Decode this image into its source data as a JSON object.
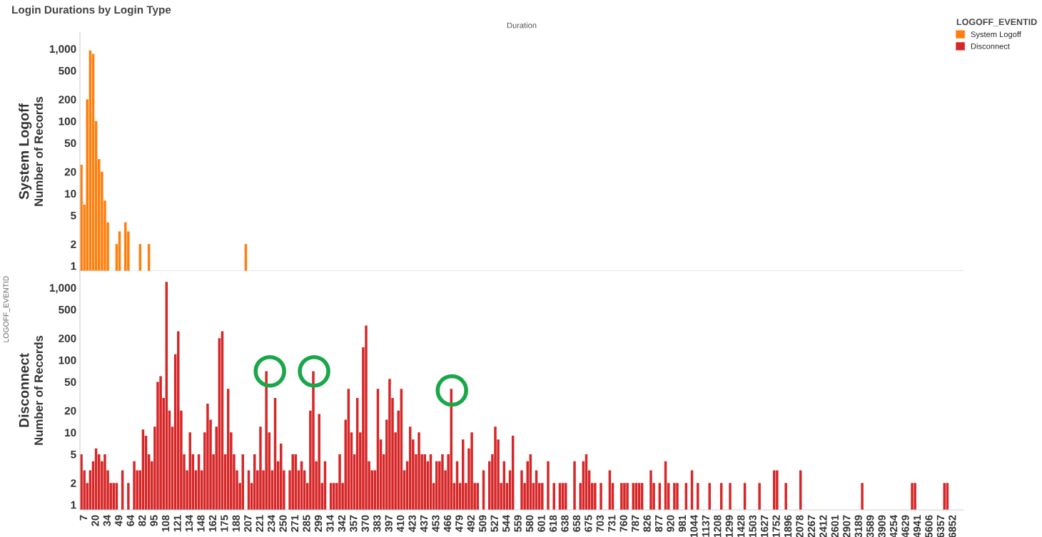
{
  "chart_data": [
    {
      "type": "bar",
      "title": "Login Durations by Login Type",
      "xlabel": "Duration",
      "ylabel": "Number of Records",
      "annotations": [
        "System Logoff"
      ],
      "legend": "right",
      "legend_title": "LOGOFF_EVENTID",
      "log": true,
      "grid": false,
      "tick_labels": "y",
      "ylim": [
        0.85,
        1700
      ],
      "yticks": [
        1,
        2,
        5,
        10,
        20,
        50,
        100,
        200,
        500,
        {
          "value": 1000,
          "label": "1,000"
        }
      ],
      "categories": [
        null,
        "7",
        null,
        null,
        null,
        "20",
        null,
        null,
        null,
        "34",
        null,
        null,
        null,
        "49",
        null,
        null,
        null,
        "64",
        null,
        null,
        null,
        "82",
        null,
        null,
        null,
        "95",
        null,
        null,
        null,
        "108",
        null,
        null,
        null,
        "121",
        null,
        null,
        null,
        "134",
        null,
        null,
        null,
        "148",
        null,
        null,
        null,
        "162",
        null,
        null,
        null,
        "175",
        null,
        null,
        null,
        "188",
        null,
        null,
        null,
        "207",
        null,
        null,
        null,
        "221",
        null,
        null,
        null,
        "234",
        null,
        null,
        null,
        "250",
        null,
        null,
        null,
        "271",
        null,
        null,
        null,
        "285",
        null,
        null,
        null,
        "299",
        null,
        null,
        null,
        "314",
        null,
        null,
        null,
        "342",
        null,
        null,
        null,
        "357",
        null,
        null,
        null,
        "370",
        null,
        null,
        null,
        "383",
        null,
        null,
        null,
        "397",
        null,
        null,
        null,
        "410",
        null,
        null,
        null,
        "423",
        null,
        null,
        null,
        "437",
        null,
        null,
        null,
        "453",
        null,
        null,
        null,
        "466",
        null,
        null,
        null,
        "479",
        null,
        null,
        null,
        "492",
        null,
        null,
        null,
        "509",
        null,
        null,
        null,
        "527",
        null,
        null,
        null,
        "544",
        null,
        null,
        null,
        "559",
        null,
        null,
        null,
        "580",
        null,
        null,
        null,
        "601",
        null,
        null,
        null,
        "618",
        null,
        null,
        null,
        "638",
        null,
        null,
        null,
        "658",
        null,
        null,
        null,
        "675",
        null,
        null,
        null,
        "703",
        null,
        null,
        null,
        "731",
        null,
        null,
        null,
        "760",
        null,
        null,
        null,
        "787",
        null,
        null,
        null,
        "826",
        null,
        null,
        null,
        "877",
        null,
        null,
        null,
        "920",
        null,
        null,
        null,
        "981",
        null,
        null,
        null,
        "1044",
        null,
        null,
        null,
        "1137",
        null,
        null,
        null,
        "1208",
        null,
        null,
        null,
        "1299",
        null,
        null,
        null,
        "1428",
        null,
        null,
        null,
        "1503",
        null,
        null,
        null,
        "1627",
        null,
        null,
        null,
        "1752",
        null,
        null,
        null,
        "1896",
        null,
        null,
        null,
        "2078",
        null,
        null,
        null,
        "2267",
        null,
        null,
        null,
        "2412",
        null,
        null,
        null,
        "2601",
        null,
        null,
        null,
        "2907",
        null,
        null,
        null,
        "3189",
        null,
        null,
        null,
        "3589",
        null,
        null,
        null,
        "3909",
        null,
        null,
        null,
        "4254",
        null,
        null,
        null,
        "4629",
        null,
        null,
        null,
        "4941",
        null,
        null,
        null,
        "5606",
        null,
        null,
        null,
        "6357",
        null,
        null,
        null,
        "6852",
        null,
        null,
        null
      ],
      "series": [
        {
          "name": "System Logoff",
          "color": "#ff7f0e",
          "values": [
            25,
            7,
            200,
            950,
            850,
            100,
            30,
            20,
            8,
            4,
            null,
            null,
            2,
            3,
            null,
            4,
            3,
            null,
            null,
            null,
            2,
            null,
            null,
            2,
            null,
            null,
            null,
            null,
            null,
            null,
            null,
            null,
            null,
            null,
            null,
            null,
            null,
            null,
            null,
            null,
            null,
            null,
            null,
            null,
            null,
            null,
            null,
            null,
            null,
            null,
            null,
            null,
            null,
            null,
            null,
            null,
            2,
            null,
            null,
            null,
            null,
            null,
            null,
            null,
            null,
            null,
            null,
            null,
            null,
            null,
            null,
            null,
            null,
            null,
            null,
            null,
            null,
            null,
            null,
            null,
            null,
            null,
            null,
            null,
            null,
            null,
            null,
            null,
            null,
            null,
            null,
            null,
            null,
            null,
            null,
            null,
            null,
            null,
            null,
            null,
            null,
            null,
            null,
            null,
            null,
            null,
            null,
            null,
            null,
            null,
            null,
            null,
            null,
            null,
            null,
            null,
            null,
            null,
            null,
            null,
            null,
            null,
            null,
            null,
            null,
            null,
            null,
            null,
            null,
            null,
            null,
            null,
            null,
            null,
            null,
            null,
            null,
            null,
            null,
            null,
            null,
            null,
            null,
            null,
            null,
            null,
            null,
            null,
            null,
            null,
            null,
            null,
            null,
            null,
            null,
            null,
            null,
            null,
            null,
            null,
            null,
            null,
            null,
            null,
            null,
            null,
            null,
            null,
            null,
            null,
            null,
            null,
            null,
            null,
            null,
            null,
            null,
            null,
            null,
            null,
            null,
            null,
            null,
            null,
            null,
            null,
            null,
            null,
            null,
            null,
            null,
            null,
            null,
            null,
            null,
            null,
            null,
            null,
            null,
            null,
            null,
            null,
            null,
            null,
            null,
            null,
            null,
            null,
            null,
            null,
            null,
            null,
            null,
            null,
            null,
            null,
            null,
            null,
            null,
            null,
            null,
            null,
            null,
            null,
            null,
            null,
            null,
            null,
            null,
            null,
            null,
            null,
            null,
            null,
            null,
            null,
            null,
            null,
            null,
            null,
            null,
            null,
            null,
            null,
            null,
            null,
            null,
            null,
            null,
            null,
            null,
            null,
            null,
            null,
            null,
            null,
            null,
            null,
            null,
            null,
            null,
            null,
            null,
            null,
            null,
            null,
            null,
            null,
            null,
            null,
            null,
            null,
            null,
            null,
            null,
            null,
            null,
            null,
            null,
            null,
            null,
            null,
            null,
            null,
            null,
            null,
            null,
            null,
            null,
            null,
            null,
            null,
            null,
            null,
            null,
            null,
            null,
            null,
            null,
            null,
            null
          ]
        }
      ]
    },
    {
      "type": "bar",
      "ylabel": "Number of Records",
      "annotations": [
        "Disconnect",
        "LOGOFF_EVENTID"
      ],
      "log": true,
      "grid": false,
      "ylim": [
        0.85,
        1700
      ],
      "yticks": [
        1,
        2,
        5,
        10,
        20,
        50,
        100,
        200,
        500,
        {
          "value": 1000,
          "label": "1,000"
        }
      ],
      "categories": [
        null,
        "7",
        null,
        null,
        null,
        "20",
        null,
        null,
        null,
        "34",
        null,
        null,
        null,
        "49",
        null,
        null,
        null,
        "64",
        null,
        null,
        null,
        "82",
        null,
        null,
        null,
        "95",
        null,
        null,
        null,
        "108",
        null,
        null,
        null,
        "121",
        null,
        null,
        null,
        "134",
        null,
        null,
        null,
        "148",
        null,
        null,
        null,
        "162",
        null,
        null,
        null,
        "175",
        null,
        null,
        null,
        "188",
        null,
        null,
        null,
        "207",
        null,
        null,
        null,
        "221",
        null,
        null,
        null,
        "234",
        null,
        null,
        null,
        "250",
        null,
        null,
        null,
        "271",
        null,
        null,
        null,
        "285",
        null,
        null,
        null,
        "299",
        null,
        null,
        null,
        "314",
        null,
        null,
        null,
        "342",
        null,
        null,
        null,
        "357",
        null,
        null,
        null,
        "370",
        null,
        null,
        null,
        "383",
        null,
        null,
        null,
        "397",
        null,
        null,
        null,
        "410",
        null,
        null,
        null,
        "423",
        null,
        null,
        null,
        "437",
        null,
        null,
        null,
        "453",
        null,
        null,
        null,
        "466",
        null,
        null,
        null,
        "479",
        null,
        null,
        null,
        "492",
        null,
        null,
        null,
        "509",
        null,
        null,
        null,
        "527",
        null,
        null,
        null,
        "544",
        null,
        null,
        null,
        "559",
        null,
        null,
        null,
        "580",
        null,
        null,
        null,
        "601",
        null,
        null,
        null,
        "618",
        null,
        null,
        null,
        "638",
        null,
        null,
        null,
        "658",
        null,
        null,
        null,
        "675",
        null,
        null,
        null,
        "703",
        null,
        null,
        null,
        "731",
        null,
        null,
        null,
        "760",
        null,
        null,
        null,
        "787",
        null,
        null,
        null,
        "826",
        null,
        null,
        null,
        "877",
        null,
        null,
        null,
        "920",
        null,
        null,
        null,
        "981",
        null,
        null,
        null,
        "1044",
        null,
        null,
        null,
        "1137",
        null,
        null,
        null,
        "1208",
        null,
        null,
        null,
        "1299",
        null,
        null,
        null,
        "1428",
        null,
        null,
        null,
        "1503",
        null,
        null,
        null,
        "1627",
        null,
        null,
        null,
        "1752",
        null,
        null,
        null,
        "1896",
        null,
        null,
        null,
        "2078",
        null,
        null,
        null,
        "2267",
        null,
        null,
        null,
        "2412",
        null,
        null,
        null,
        "2601",
        null,
        null,
        null,
        "2907",
        null,
        null,
        null,
        "3189",
        null,
        null,
        null,
        "3589",
        null,
        null,
        null,
        "3909",
        null,
        null,
        null,
        "4254",
        null,
        null,
        null,
        "4629",
        null,
        null,
        null,
        "4941",
        null,
        null,
        null,
        "5606",
        null,
        null,
        null,
        "6357",
        null,
        null,
        null,
        "6852",
        null,
        null,
        null
      ],
      "series": [
        {
          "name": "Disconnect",
          "color": "#d62728",
          "values": [
            5,
            3,
            2,
            3,
            4,
            6,
            5,
            4,
            5,
            3,
            2,
            2,
            2,
            null,
            3,
            null,
            2,
            null,
            4,
            3,
            3,
            11,
            9,
            5,
            4,
            12,
            50,
            60,
            30,
            1200,
            20,
            12,
            120,
            250,
            20,
            5,
            3,
            10,
            5,
            3,
            5,
            3,
            10,
            25,
            15,
            5,
            12,
            200,
            250,
            5,
            40,
            10,
            5,
            3,
            2,
            5,
            null,
            3,
            2,
            5,
            3,
            12,
            3,
            70,
            10,
            3,
            30,
            4,
            7,
            3,
            null,
            3,
            5,
            5,
            3,
            4,
            3,
            2,
            20,
            70,
            4,
            18,
            2,
            4,
            null,
            2,
            2,
            2,
            5,
            2,
            15,
            40,
            10,
            5,
            30,
            10,
            150,
            300,
            4,
            3,
            3,
            40,
            8,
            5,
            15,
            55,
            30,
            10,
            20,
            40,
            3,
            4,
            12,
            8,
            5,
            10,
            5,
            5,
            4,
            5,
            2,
            4,
            4,
            5,
            3,
            5,
            40,
            2,
            4,
            2,
            8,
            2,
            6,
            10,
            2,
            2,
            null,
            3,
            null,
            4,
            5,
            12,
            8,
            2,
            4,
            2,
            3,
            9,
            null,
            null,
            3,
            2,
            4,
            5,
            2,
            3,
            2,
            2,
            null,
            4,
            null,
            2,
            null,
            2,
            2,
            2,
            null,
            null,
            4,
            null,
            2,
            4,
            5,
            3,
            2,
            2,
            null,
            2,
            null,
            null,
            3,
            2,
            null,
            null,
            2,
            2,
            2,
            null,
            2,
            2,
            2,
            2,
            null,
            null,
            3,
            2,
            null,
            2,
            null,
            4,
            2,
            null,
            2,
            2,
            null,
            null,
            2,
            null,
            3,
            null,
            2,
            null,
            null,
            null,
            2,
            null,
            null,
            null,
            2,
            null,
            null,
            2,
            null,
            null,
            null,
            null,
            2,
            null,
            null,
            null,
            null,
            2,
            null,
            null,
            null,
            null,
            3,
            3,
            null,
            null,
            2,
            null,
            null,
            null,
            null,
            3,
            null,
            null,
            null,
            null,
            null,
            null,
            null,
            null,
            null,
            null,
            null,
            null,
            null,
            null,
            null,
            null,
            null,
            null,
            null,
            null,
            2,
            null,
            null,
            null,
            null,
            null,
            null,
            null,
            null,
            null,
            null,
            null,
            null,
            null,
            null,
            null,
            null,
            2,
            2,
            null,
            null,
            null,
            null,
            null,
            null,
            null,
            null,
            null,
            2,
            2,
            null,
            null,
            null,
            null,
            null
          ]
        }
      ]
    }
  ]
}
